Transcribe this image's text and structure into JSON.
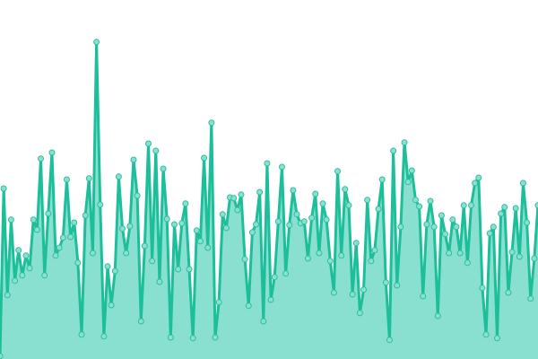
{
  "chart_data": {
    "type": "area",
    "title": "",
    "xlabel": "",
    "ylabel": "",
    "ylim": [
      0,
      100
    ],
    "grid": false,
    "legend": "none",
    "markers": true,
    "colors": {
      "line": "#1dbf9b",
      "fill": "#8ae0d0",
      "marker_fill": "#8ae0d0",
      "marker_stroke": "#2cbf9d"
    },
    "series": [
      {
        "values": [
          0.8,
          47.5,
          17.8,
          38.8,
          21.8,
          30.3,
          23.3,
          28.8,
          25.3,
          38.8,
          36,
          55.8,
          23.3,
          40.5,
          57.5,
          28.8,
          31,
          33.8,
          50,
          34,
          38,
          26.8,
          6.8,
          40,
          50.3,
          29.5,
          88.3,
          43,
          6.3,
          25.8,
          15,
          24.5,
          50.8,
          36.3,
          29.5,
          37,
          55.5,
          45.5,
          10.5,
          31.5,
          60,
          27.3,
          58,
          21.5,
          53,
          39,
          6,
          37.5,
          25,
          37.8,
          43.3,
          25,
          5.8,
          35.8,
          32.8,
          56,
          31,
          65.8,
          6,
          15.8,
          40.3,
          36.5,
          45,
          44.8,
          41.5,
          45.8,
          27.8,
          14.8,
          35.3,
          37.5,
          46.5,
          10.5,
          54.5,
          16.5,
          22.8,
          38.3,
          53.5,
          23.8,
          37.3,
          47,
          40.3,
          37.8,
          38.3,
          28,
          39.3,
          46,
          29.5,
          43.3,
          38.8,
          27.3,
          18.5,
          52.3,
          28.8,
          47.3,
          42.8,
          18,
          32.3,
          12.8,
          19.3,
          44.3,
          27.3,
          30.3,
          41.8,
          50,
          21.3,
          5.3,
          58,
          20.5,
          36.8,
          60.3,
          49.3,
          52.5,
          44.3,
          42.5,
          17.5,
          37.5,
          44,
          36.8,
          12,
          40,
          34.8,
          29.5,
          38.8,
          36.8,
          29.5,
          42.8,
          26.8,
          42.8,
          49,
          50.5,
          19.8,
          6.8,
          35,
          36.8,
          5.8,
          40.5,
          42.3,
          18.5,
          29.8,
          42,
          28.5,
          49,
          38,
          16.8,
          28,
          42.8
        ]
      }
    ]
  }
}
